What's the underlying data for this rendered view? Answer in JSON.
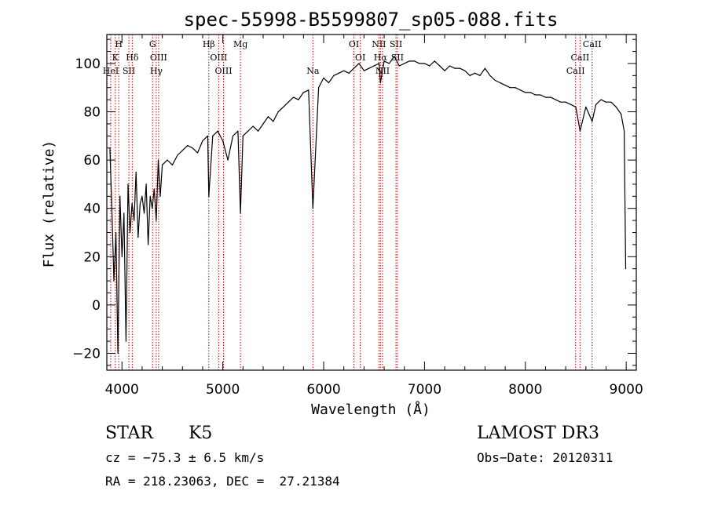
{
  "chart_data": {
    "type": "line",
    "title": "spec-55998-B5599807_sp05-088.fits",
    "xlabel": "Wavelength (Å)",
    "ylabel": "Flux (relative)",
    "xlim": [
      3850,
      9100
    ],
    "ylim": [
      -27,
      112
    ],
    "xticks": [
      4000,
      5000,
      6000,
      7000,
      8000,
      9000
    ],
    "yticks": [
      -20,
      0,
      20,
      40,
      60,
      80,
      100
    ],
    "line_color": "#000000",
    "marker_color": "#cc0000",
    "series": [
      {
        "name": "flux",
        "x": [
          3880,
          3900,
          3920,
          3940,
          3960,
          3980,
          4000,
          4020,
          4040,
          4060,
          4080,
          4100,
          4120,
          4140,
          4160,
          4180,
          4200,
          4220,
          4240,
          4260,
          4280,
          4300,
          4320,
          4340,
          4360,
          4380,
          4400,
          4450,
          4500,
          4550,
          4600,
          4650,
          4700,
          4750,
          4800,
          4850,
          4861,
          4900,
          4950,
          5000,
          5050,
          5100,
          5150,
          5175,
          5200,
          5250,
          5300,
          5350,
          5400,
          5450,
          5500,
          5550,
          5600,
          5650,
          5700,
          5750,
          5800,
          5850,
          5893,
          5950,
          6000,
          6050,
          6100,
          6150,
          6200,
          6250,
          6300,
          6350,
          6400,
          6450,
          6500,
          6550,
          6563,
          6600,
          6650,
          6700,
          6750,
          6800,
          6850,
          6900,
          6950,
          7000,
          7050,
          7100,
          7150,
          7200,
          7250,
          7300,
          7350,
          7400,
          7450,
          7500,
          7550,
          7600,
          7650,
          7700,
          7750,
          7800,
          7850,
          7900,
          7950,
          8000,
          8050,
          8100,
          8150,
          8200,
          8250,
          8300,
          8350,
          8400,
          8450,
          8500,
          8542,
          8600,
          8662,
          8700,
          8750,
          8800,
          8850,
          8900,
          8950,
          8980,
          8995
        ],
        "y": [
          65,
          40,
          10,
          30,
          -20,
          45,
          20,
          38,
          -15,
          50,
          30,
          42,
          35,
          55,
          28,
          42,
          45,
          38,
          50,
          25,
          45,
          40,
          48,
          35,
          60,
          45,
          58,
          60,
          58,
          62,
          64,
          66,
          65,
          63,
          68,
          70,
          45,
          70,
          72,
          68,
          60,
          70,
          72,
          38,
          70,
          72,
          74,
          72,
          75,
          78,
          76,
          80,
          82,
          84,
          86,
          85,
          88,
          89,
          40,
          90,
          94,
          92,
          95,
          96,
          97,
          96,
          98,
          100,
          97,
          98,
          99,
          100,
          92,
          101,
          100,
          103,
          99,
          100,
          101,
          101,
          100,
          100,
          99,
          101,
          99,
          97,
          99,
          98,
          98,
          97,
          95,
          96,
          95,
          98,
          95,
          93,
          92,
          91,
          90,
          90,
          89,
          88,
          88,
          87,
          87,
          86,
          86,
          85,
          84,
          84,
          83,
          82,
          72,
          82,
          76,
          83,
          85,
          84,
          84,
          82,
          79,
          72,
          15
        ]
      }
    ],
    "spectral_lines": [
      {
        "label": "H",
        "wavelength": 3968,
        "row": 1
      },
      {
        "label": "K",
        "wavelength": 3934,
        "row": 2
      },
      {
        "label": "HeI",
        "wavelength": 3889,
        "row": 3
      },
      {
        "label": "SII",
        "wavelength": 4069,
        "row": 3
      },
      {
        "label": "Hδ",
        "wavelength": 4102,
        "row": 2
      },
      {
        "label": "G",
        "wavelength": 4304,
        "row": 1
      },
      {
        "label": "OIII",
        "wavelength": 4363,
        "row": 2
      },
      {
        "label": "Hγ",
        "wavelength": 4340,
        "row": 3
      },
      {
        "label": "Hβ",
        "wavelength": 4861,
        "row": 1
      },
      {
        "label": "OIII",
        "wavelength": 4959,
        "row": 2
      },
      {
        "label": "OIII",
        "wavelength": 5007,
        "row": 3
      },
      {
        "label": "Mg",
        "wavelength": 5175,
        "row": 1
      },
      {
        "label": "Na",
        "wavelength": 5893,
        "row": 3
      },
      {
        "label": "OI",
        "wavelength": 6300,
        "row": 1
      },
      {
        "label": "OI",
        "wavelength": 6363,
        "row": 2
      },
      {
        "label": "NII",
        "wavelength": 6548,
        "row": 1
      },
      {
        "label": "Hα",
        "wavelength": 6563,
        "row": 2
      },
      {
        "label": "NII",
        "wavelength": 6584,
        "row": 3
      },
      {
        "label": "SII",
        "wavelength": 6717,
        "row": 1
      },
      {
        "label": "SII",
        "wavelength": 6731,
        "row": 2
      },
      {
        "label": "CaII",
        "wavelength": 8662,
        "row": 1
      },
      {
        "label": "CaII",
        "wavelength": 8542,
        "row": 2
      },
      {
        "label": "CaII",
        "wavelength": 8498,
        "row": 3
      }
    ]
  },
  "info": {
    "object_class": "STAR",
    "subclass": "K5",
    "survey": "LAMOST DR3",
    "cz": "cz = −75.3 ± 6.5 km/s",
    "obs_date": "Obs−Date: 20120311",
    "coords": "RA = 218.23063, DEC =  27.21384"
  }
}
